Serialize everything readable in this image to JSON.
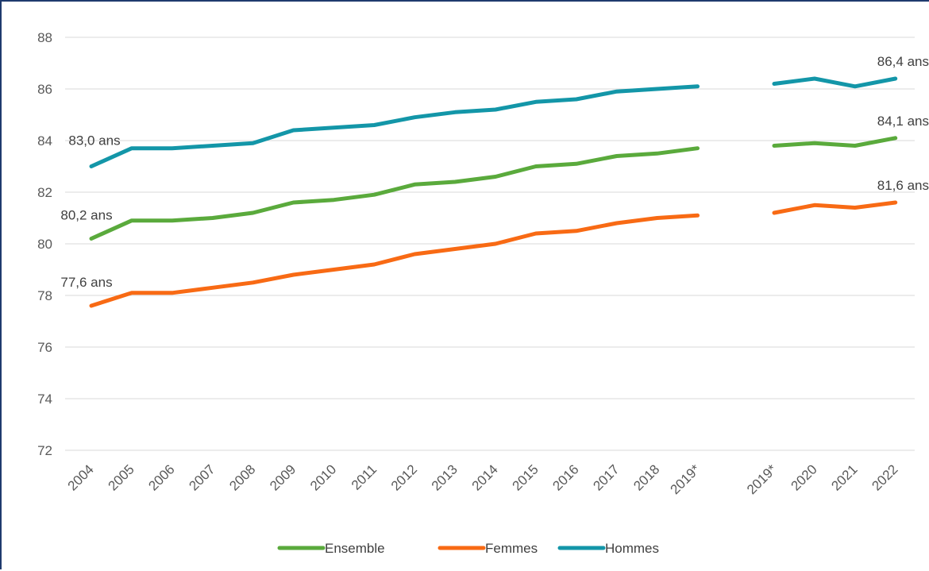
{
  "chart_data": {
    "type": "line",
    "title": "",
    "xlabel": "",
    "ylabel": "",
    "ylim": [
      72,
      88
    ],
    "yticks": [
      72,
      74,
      76,
      78,
      80,
      82,
      84,
      86,
      88
    ],
    "grid": true,
    "legend_position": "bottom",
    "segments": [
      {
        "categories": [
          "2004",
          "2005",
          "2006",
          "2007",
          "2008",
          "2009",
          "2010",
          "2011",
          "2012",
          "2013",
          "2014",
          "2015",
          "2016",
          "2017",
          "2018",
          "2019*"
        ]
      },
      {
        "categories": [
          "2019*",
          "2020",
          "2021",
          "2022"
        ]
      }
    ],
    "series": [
      {
        "name": "Ensemble",
        "color": "#5AAA3C",
        "values": [
          [
            80.2,
            80.9,
            80.9,
            81.0,
            81.2,
            81.6,
            81.7,
            81.9,
            82.3,
            82.4,
            82.6,
            83.0,
            83.1,
            83.4,
            83.5,
            83.7
          ],
          [
            83.8,
            83.9,
            83.8,
            84.1
          ]
        ]
      },
      {
        "name": "Femmes",
        "color": "#F86A14",
        "values": [
          [
            77.6,
            78.1,
            78.1,
            78.3,
            78.5,
            78.8,
            79.0,
            79.2,
            79.6,
            79.8,
            80.0,
            80.4,
            80.5,
            80.8,
            81.0,
            81.1
          ],
          [
            81.2,
            81.5,
            81.4,
            81.6
          ]
        ]
      },
      {
        "name": "Hommes",
        "color": "#1396A8",
        "values": [
          [
            83.0,
            83.7,
            83.7,
            83.8,
            83.9,
            84.4,
            84.5,
            84.6,
            84.9,
            85.1,
            85.2,
            85.5,
            85.6,
            85.9,
            86.0,
            86.1
          ],
          [
            86.2,
            86.4,
            86.1,
            86.4
          ]
        ]
      }
    ],
    "annotations": [
      {
        "text": "83,0 ans",
        "series": "Hommes",
        "segment": 0,
        "index": 0
      },
      {
        "text": "80,2 ans",
        "series": "Ensemble",
        "segment": 0,
        "index": 0
      },
      {
        "text": "77,6 ans",
        "series": "Femmes",
        "segment": 0,
        "index": 0
      },
      {
        "text": "86,4 ans",
        "series": "Hommes",
        "segment": 1,
        "index": 3
      },
      {
        "text": "84,1 ans",
        "series": "Ensemble",
        "segment": 1,
        "index": 3
      },
      {
        "text": "81,6 ans",
        "series": "Femmes",
        "segment": 1,
        "index": 3
      }
    ]
  }
}
